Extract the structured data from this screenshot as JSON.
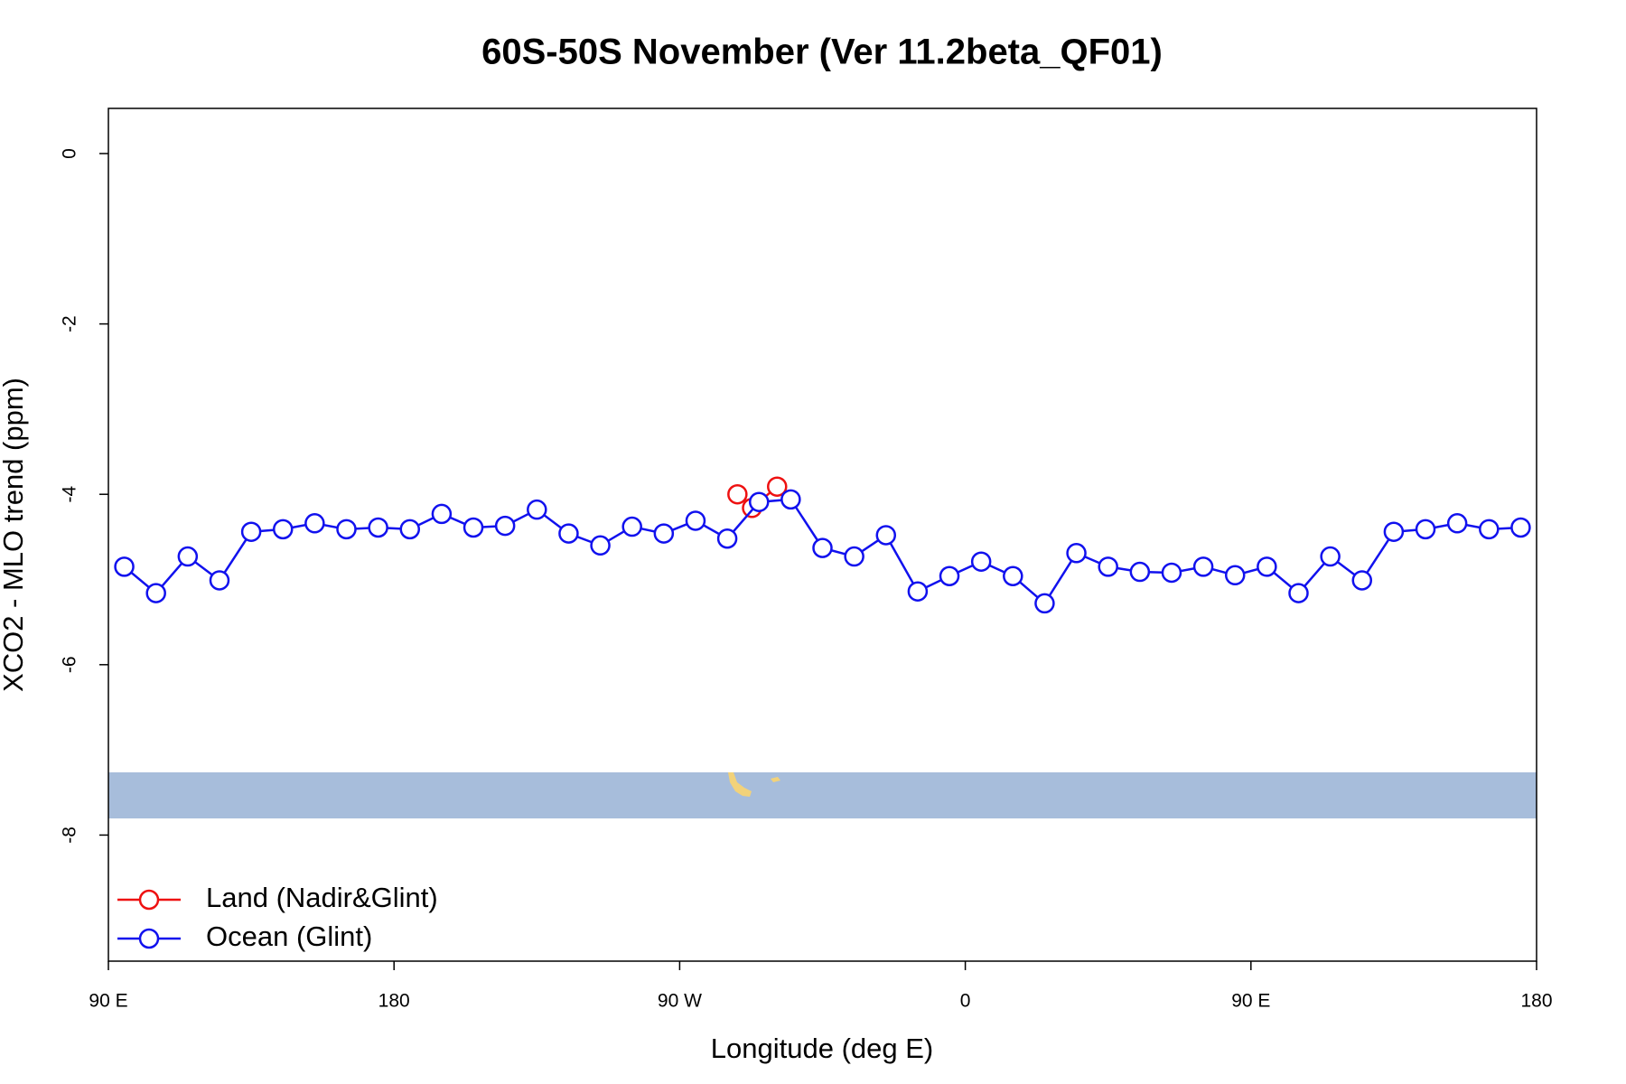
{
  "chart_data": {
    "type": "line",
    "title": "60S-50S November (Ver 11.2beta_QF01)",
    "x_label": "Longitude (deg E)",
    "y_label": "XCO2 - MLO trend (ppm)",
    "xlim": [
      90,
      540
    ],
    "ylim": [
      -9.48,
      0.53
    ],
    "xticks": [
      {
        "value": 90,
        "label": "90 E"
      },
      {
        "value": 180,
        "label": "180"
      },
      {
        "value": 270,
        "label": "90 W"
      },
      {
        "value": 360,
        "label": "0"
      },
      {
        "value": 450,
        "label": "90 E"
      },
      {
        "value": 540,
        "label": "180"
      }
    ],
    "yticks": [
      0,
      -2,
      -4,
      -6,
      -8
    ],
    "legend": "bottomleft",
    "series": [
      {
        "name": "Land (Nadir&Glint)",
        "color": "#ee1111",
        "x": [
          288.2,
          292.8,
          300.7
        ],
        "values": [
          -4.0,
          -4.16,
          -3.91
        ]
      },
      {
        "name": "Ocean (Glint)",
        "color": "#1111ee",
        "x": [
          95,
          105,
          115,
          125,
          135,
          145,
          155,
          165,
          175,
          185,
          195,
          205,
          215,
          225,
          235,
          245,
          255,
          265,
          275,
          285,
          295,
          305,
          315,
          325,
          335,
          345,
          355,
          365,
          375,
          385,
          395,
          405,
          415,
          425,
          435,
          445,
          455,
          465,
          475,
          485,
          495,
          505,
          515,
          525,
          535
        ],
        "values": [
          -4.85,
          -5.16,
          -4.73,
          -5.01,
          -4.44,
          -4.41,
          -4.34,
          -4.41,
          -4.39,
          -4.41,
          -4.23,
          -4.39,
          -4.37,
          -4.18,
          -4.46,
          -4.6,
          -4.38,
          -4.46,
          -4.31,
          -4.52,
          -4.09,
          -4.06,
          -4.63,
          -4.73,
          -4.48,
          -5.14,
          -4.96,
          -4.79,
          -4.96,
          -5.28,
          -4.69,
          -4.85,
          -4.91,
          -4.92,
          -4.85,
          -4.95,
          -4.85,
          -5.16,
          -4.73,
          -5.01,
          -4.44,
          -4.41,
          -4.34,
          -4.41,
          -4.39
        ]
      }
    ]
  }
}
